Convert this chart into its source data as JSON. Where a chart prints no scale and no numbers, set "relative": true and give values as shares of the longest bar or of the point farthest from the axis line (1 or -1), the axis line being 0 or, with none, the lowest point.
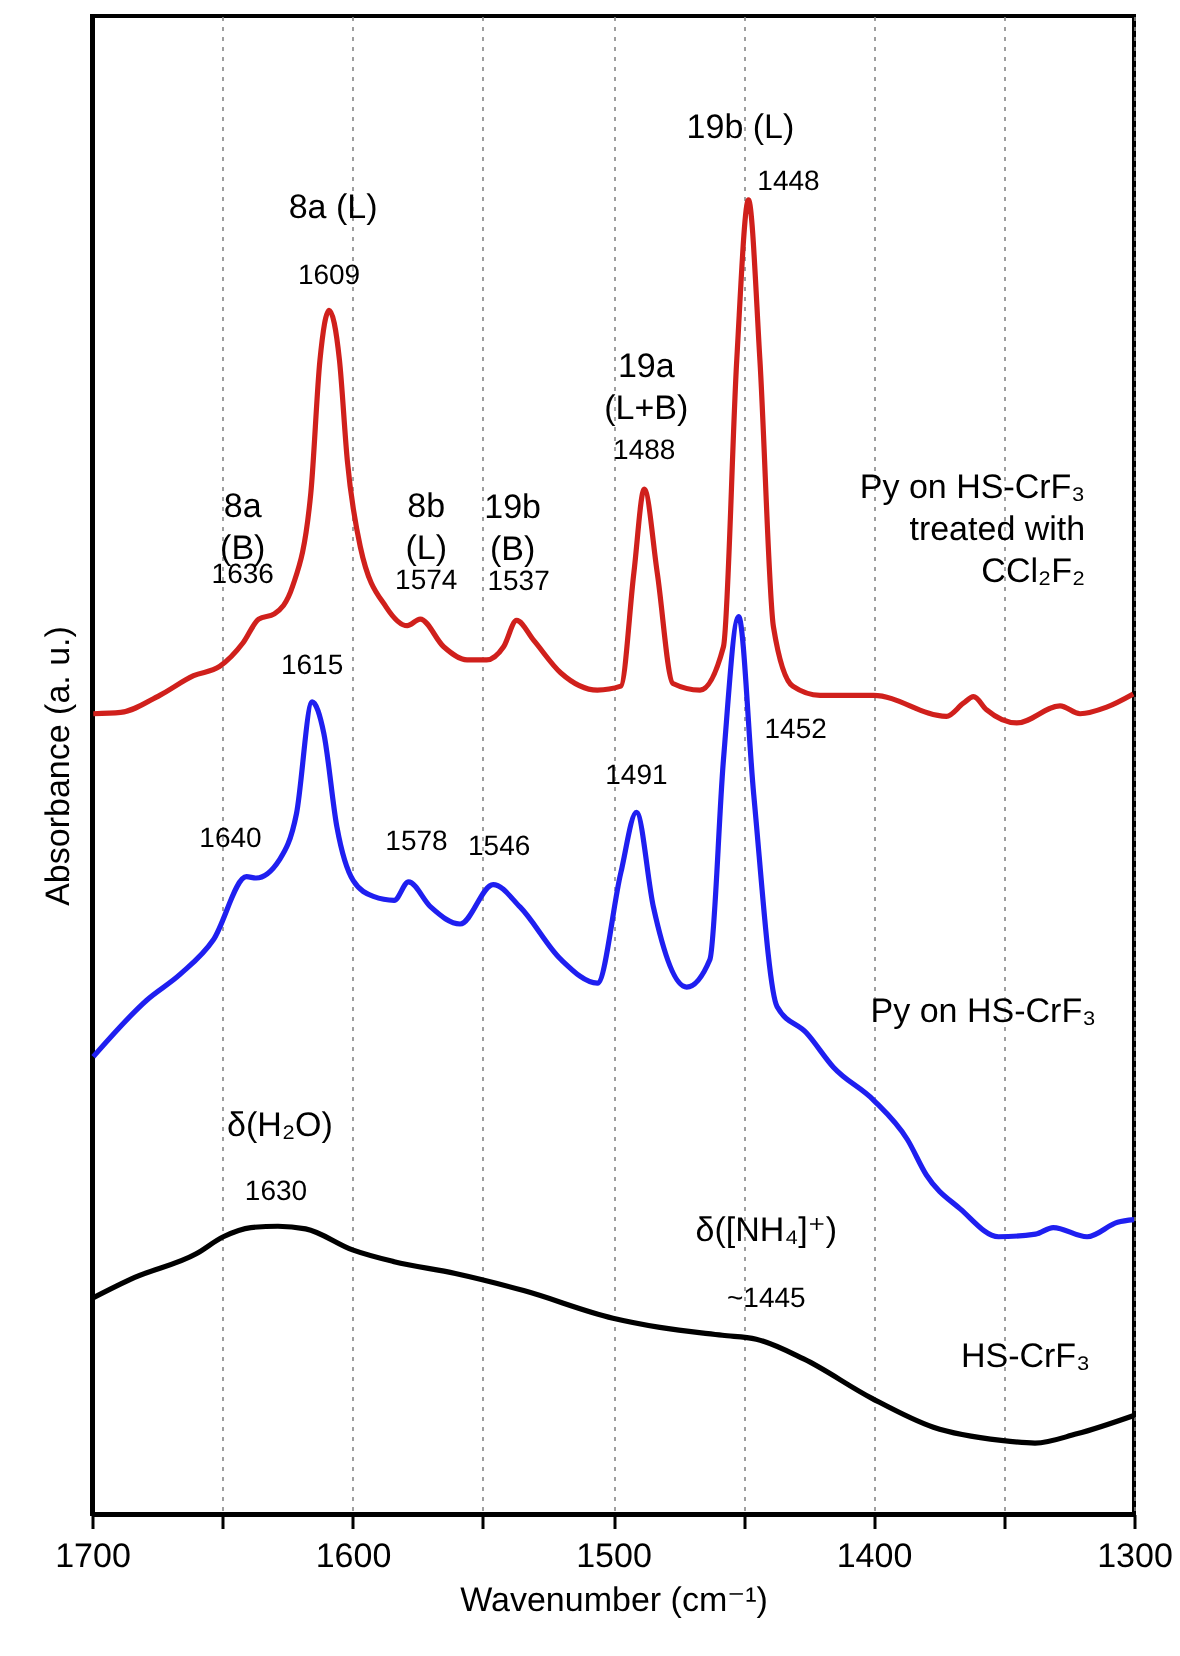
{
  "chart_data": {
    "type": "line",
    "relative": true,
    "xlabel": "Wavenumber (cm⁻¹)",
    "ylabel": "Absorbance (a. u.)",
    "xlim": [
      1700,
      1300
    ],
    "xticks": [
      1700,
      {
        "value": 1650,
        "label": null
      },
      1600,
      {
        "value": 1550,
        "label": null
      },
      1500,
      {
        "value": 1450,
        "label": null
      },
      1400,
      {
        "value": 1350,
        "label": null
      },
      1300
    ],
    "grid": "x",
    "marker": "none",
    "line_style": "solid",
    "series": [
      {
        "name": "Py on HS-CrF₃\ntreated with\nCCl₂F₂",
        "color": "#d0201c",
        "x": [
          1699.5,
          1689,
          1674,
          1661,
          1651,
          1642,
          1636,
          1630,
          1623,
          1616,
          1612.5,
          1609,
          1605,
          1602,
          1597,
          1587,
          1579,
          1574,
          1565,
          1556,
          1548.5,
          1542,
          1537,
          1530.5,
          1520,
          1506,
          1497,
          1492,
          1488,
          1483,
          1477,
          1466.6,
          1457.6,
          1452.5,
          1448,
          1443.6,
          1438.4,
          1431,
          1420.5,
          1400,
          1372,
          1365.5,
          1361.6,
          1356.6,
          1345,
          1328.4,
          1320.7,
          1310.5,
          1300.3
        ],
        "values": [
          0.609,
          0.61,
          0.623,
          0.638,
          0.645,
          0.663,
          0.681,
          0.685,
          0.706,
          0.777,
          0.878,
          0.916,
          0.878,
          0.802,
          0.736,
          0.69,
          0.676,
          0.681,
          0.66,
          0.65,
          0.65,
          0.66,
          0.68,
          0.665,
          0.64,
          0.627,
          0.63,
          0.716,
          0.78,
          0.716,
          0.632,
          0.627,
          0.66,
          0.878,
          1.0,
          0.878,
          0.675,
          0.63,
          0.623,
          0.623,
          0.607,
          0.617,
          0.622,
          0.612,
          0.602,
          0.615,
          0.609,
          0.614,
          0.624
        ]
      },
      {
        "name": "Py on HS-CrF₃",
        "color": "#1f1ff0",
        "x": [
          1699.5,
          1679,
          1666,
          1653.4,
          1640.7,
          1637,
          1628,
          1621.5,
          1615.5,
          1611,
          1606,
          1599.7,
          1592,
          1584,
          1578.5,
          1570,
          1558.7,
          1546,
          1535.7,
          1520,
          1506,
          1497,
          1491,
          1484.5,
          1471.7,
          1462.8,
          1457.6,
          1451.8,
          1446,
          1437,
          1425.7,
          1415.4,
          1400,
          1387,
          1379.7,
          1366.6,
          1352,
          1337.8,
          1331,
          1318,
          1306.3,
          1300
        ],
        "values": [
          0.348,
          0.391,
          0.411,
          0.437,
          0.485,
          0.484,
          0.498,
          0.533,
          0.618,
          0.594,
          0.523,
          0.482,
          0.47,
          0.467,
          0.481,
          0.462,
          0.449,
          0.479,
          0.462,
          0.422,
          0.404,
          0.488,
          0.534,
          0.462,
          0.401,
          0.422,
          0.574,
          0.683,
          0.548,
          0.386,
          0.366,
          0.34,
          0.315,
          0.285,
          0.258,
          0.232,
          0.211,
          0.213,
          0.218,
          0.211,
          0.222,
          0.224
        ]
      },
      {
        "name": "HS-CrF₃",
        "color": "#000000",
        "x": [
          1700,
          1683.6,
          1660,
          1649.6,
          1639,
          1628.6,
          1618,
          1600,
          1584,
          1560.5,
          1534.3,
          1500,
          1482,
          1458,
          1445,
          1426.8,
          1400.6,
          1377,
          1351,
          1338,
          1322,
          1300
        ],
        "values": [
          0.164,
          0.18,
          0.198,
          0.211,
          0.218,
          0.219,
          0.217,
          0.201,
          0.192,
          0.183,
          0.17,
          0.149,
          0.142,
          0.136,
          0.133,
          0.118,
          0.088,
          0.066,
          0.056,
          0.054,
          0.061,
          0.075
        ]
      }
    ],
    "annotations": [
      {
        "text": "8a (L)",
        "x": 1609,
        "y": 0.916
      },
      {
        "text": "1609",
        "x": 1609,
        "y": 0.916
      },
      {
        "text": "8a\n(B)",
        "x": 1636,
        "y": 0.681
      },
      {
        "text": "1636",
        "x": 1636,
        "y": 0.681
      },
      {
        "text": "8b\n(L)",
        "x": 1574,
        "y": 0.681
      },
      {
        "text": "1574",
        "x": 1574,
        "y": 0.681
      },
      {
        "text": "19b\n(B)",
        "x": 1537,
        "y": 0.68
      },
      {
        "text": "1537",
        "x": 1537,
        "y": 0.68
      },
      {
        "text": "19a\n(L+B)",
        "x": 1488,
        "y": 0.78
      },
      {
        "text": "1488",
        "x": 1488,
        "y": 0.78
      },
      {
        "text": "19b (L)",
        "x": 1448,
        "y": 1.0
      },
      {
        "text": "1448",
        "x": 1448,
        "y": 1.0
      },
      {
        "text": "1615",
        "x": 1615.5,
        "y": 0.618
      },
      {
        "text": "1640",
        "x": 1640.7,
        "y": 0.485
      },
      {
        "text": "1578",
        "x": 1578.5,
        "y": 0.481
      },
      {
        "text": "1546",
        "x": 1546,
        "y": 0.479
      },
      {
        "text": "1491",
        "x": 1491,
        "y": 0.534
      },
      {
        "text": "1452",
        "x": 1446,
        "y": 0.548
      },
      {
        "text": "δ(H₂O)",
        "x": 1628.6,
        "y": 0.219
      },
      {
        "text": "1630",
        "x": 1628.6,
        "y": 0.219
      },
      {
        "text": "δ([NH₄]⁺)",
        "x": 1445,
        "y": 0.133
      },
      {
        "text": "~1445",
        "x": 1445,
        "y": 0.133
      }
    ]
  }
}
